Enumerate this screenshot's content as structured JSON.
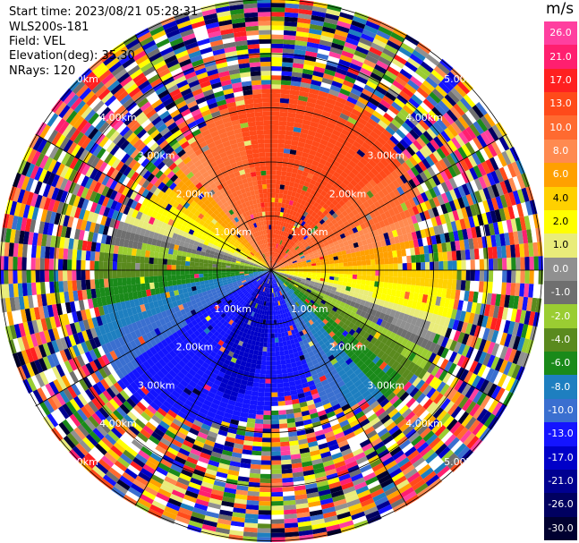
{
  "header": {
    "start_time": "Start time: 2023/08/21 05:28:31",
    "instrument": "WLS200s-181",
    "field": "Field: VEL",
    "elevation": "Elevation(deg): 35.30",
    "nrays": "NRays: 120"
  },
  "colorbar": {
    "unit": "m/s",
    "levels": [
      {
        "label": "26.0",
        "color": "#ff3f9f"
      },
      {
        "label": "21.0",
        "color": "#ff1f6f"
      },
      {
        "label": "17.0",
        "color": "#ff2020"
      },
      {
        "label": "13.0",
        "color": "#ff4a1a"
      },
      {
        "label": "10.0",
        "color": "#ff6a30"
      },
      {
        "label": "8.0",
        "color": "#ff8a50"
      },
      {
        "label": "6.0",
        "color": "#ffa000"
      },
      {
        "label": "4.0",
        "color": "#ffd000"
      },
      {
        "label": "2.0",
        "color": "#ffff00"
      },
      {
        "label": "1.0",
        "color": "#e9ec7a"
      },
      {
        "label": "0.0",
        "color": "#909090"
      },
      {
        "label": "-1.0",
        "color": "#6f6f6f"
      },
      {
        "label": "-2.0",
        "color": "#9acd32"
      },
      {
        "label": "-4.0",
        "color": "#5a8a1e"
      },
      {
        "label": "-6.0",
        "color": "#1a8a1a"
      },
      {
        "label": "-8.0",
        "color": "#1e7fc0"
      },
      {
        "label": "-10.0",
        "color": "#3a6fd0"
      },
      {
        "label": "-13.0",
        "color": "#1414ff"
      },
      {
        "label": "-17.0",
        "color": "#0000c8"
      },
      {
        "label": "-21.0",
        "color": "#000090"
      },
      {
        "label": "-26.0",
        "color": "#000060"
      },
      {
        "label": "-30.0",
        "color": "#000030"
      }
    ]
  },
  "range_rings": {
    "labels": [
      "1.00km",
      "2.00km",
      "3.00km",
      "4.00km",
      "5.00km"
    ]
  },
  "colors": {
    "ring": "#000000",
    "grid": "#000000",
    "label_text": "#ffffff"
  }
}
